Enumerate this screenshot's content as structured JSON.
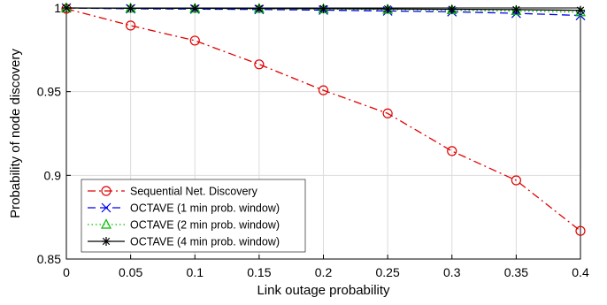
{
  "chart_data": {
    "type": "line",
    "xlabel": "Link outage probability",
    "ylabel": "Probability of node discovery",
    "xlim": [
      0,
      0.4
    ],
    "ylim": [
      0.85,
      1
    ],
    "xticks": [
      0,
      0.05,
      0.1,
      0.15,
      0.2,
      0.25,
      0.3,
      0.35,
      0.4
    ],
    "xtick_labels": [
      "0",
      "0.05",
      "0.1",
      "0.15",
      "0.2",
      "0.25",
      "0.3",
      "0.35",
      "0.4"
    ],
    "yticks": [
      0.85,
      0.9,
      0.95,
      1
    ],
    "ytick_labels": [
      "0.85",
      "0.9",
      "0.95",
      "1"
    ],
    "grid": true,
    "legend_position": "bottom-left",
    "x": [
      0,
      0.05,
      0.1,
      0.15,
      0.2,
      0.25,
      0.3,
      0.35,
      0.4
    ],
    "series": [
      {
        "name": "Sequential Net. Discovery",
        "color": "#e00000",
        "line_style": "dash-dot",
        "marker": "circle",
        "values": [
          0.9995,
          0.9895,
          0.9805,
          0.9663,
          0.9508,
          0.937,
          0.9145,
          0.897,
          0.8668
        ]
      },
      {
        "name": "OCTAVE (1 min prob. window)",
        "color": "#0000ee",
        "line_style": "dashed",
        "marker": "x",
        "values": [
          1.0,
          0.9995,
          0.9993,
          0.9991,
          0.9987,
          0.9982,
          0.9977,
          0.9968,
          0.9955
        ]
      },
      {
        "name": "OCTAVE (2 min prob. window)",
        "color": "#00bb00",
        "line_style": "dotted",
        "marker": "triangle",
        "values": [
          1.0,
          0.9997,
          0.9996,
          0.9995,
          0.9993,
          0.999,
          0.9987,
          0.9982,
          0.9975
        ]
      },
      {
        "name": "OCTAVE (4 min prob. window)",
        "color": "#000000",
        "line_style": "solid",
        "marker": "asterisk",
        "values": [
          1.0,
          0.9998,
          0.9998,
          0.9997,
          0.9996,
          0.9994,
          0.9992,
          0.999,
          0.9986
        ]
      }
    ]
  }
}
